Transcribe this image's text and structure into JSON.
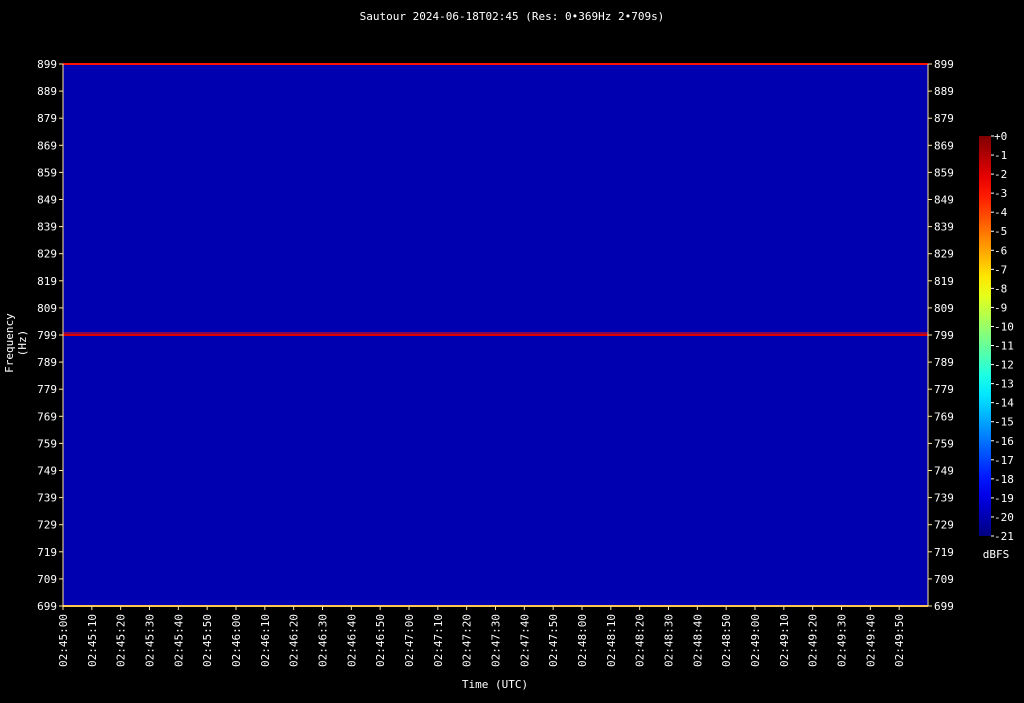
{
  "chart_data": {
    "type": "heatmap",
    "title": "Sautour 2024-06-18T02:45 (Res: 0•369Hz 2•709s)",
    "xlabel": "Time (UTC)",
    "ylabel": "Frequency (Hz)",
    "colorbar_label": "dBFS",
    "colorbar_ticks": [
      "+0",
      "-1",
      "-2",
      "-3",
      "-4",
      "-5",
      "-6",
      "-7",
      "-8",
      "-9",
      "-10",
      "-11",
      "-12",
      "-13",
      "-14",
      "-15",
      "-16",
      "-17",
      "-18",
      "-19",
      "-20",
      "-21"
    ],
    "colorbar_range": [
      -21,
      0
    ],
    "y_ticks": [
      "899",
      "889",
      "879",
      "869",
      "859",
      "849",
      "839",
      "829",
      "819",
      "809",
      "799",
      "789",
      "779",
      "769",
      "759",
      "749",
      "739",
      "729",
      "719",
      "709",
      "699"
    ],
    "y_range": [
      699,
      899
    ],
    "x_ticks": [
      "02:45:00",
      "02:45:10",
      "02:45:20",
      "02:45:30",
      "02:45:40",
      "02:45:50",
      "02:46:00",
      "02:46:10",
      "02:46:20",
      "02:46:30",
      "02:46:40",
      "02:46:50",
      "02:47:00",
      "02:47:10",
      "02:47:20",
      "02:47:30",
      "02:47:40",
      "02:47:50",
      "02:48:00",
      "02:48:10",
      "02:48:20",
      "02:48:30",
      "02:48:40",
      "02:48:50",
      "02:49:00",
      "02:49:10",
      "02:49:20",
      "02:49:30",
      "02:49:40",
      "02:49:50"
    ],
    "x_range": [
      "02:45:00",
      "02:50:00"
    ],
    "background_level_dbfs": -20,
    "features": [
      {
        "frequency_hz": 799,
        "level_dbfs": -2
      },
      {
        "frequency_hz": 699,
        "level_dbfs": -6
      },
      {
        "frequency_hz": 899,
        "level_dbfs": -3
      }
    ],
    "colors": {
      "background": "#000000",
      "plot_fill": "#0a0aa8",
      "axis": "#ffe8a0",
      "text": "#ffffff"
    }
  }
}
